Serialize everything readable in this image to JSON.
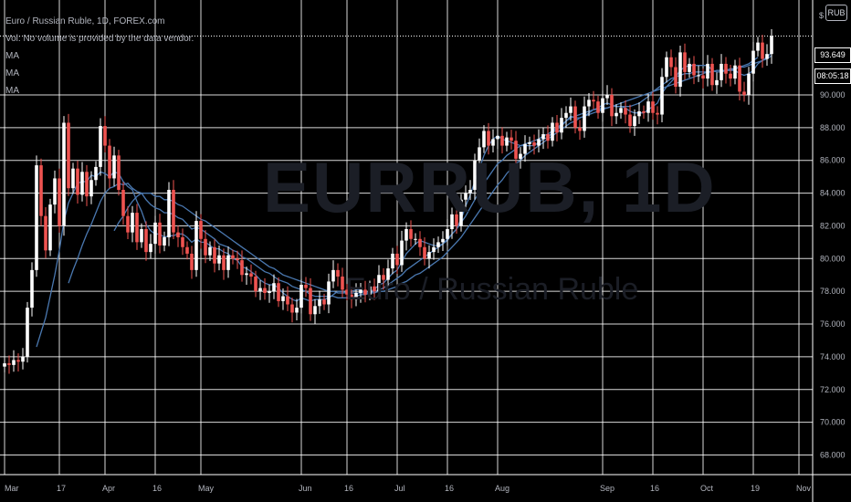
{
  "legend": {
    "title": "Euro / Russian Ruble, 1D, FOREX.com",
    "volume_note": "Vol: No volume is provided by the data vendor.",
    "ma_labels": [
      "MA",
      "MA",
      "MA"
    ]
  },
  "watermark": {
    "symbol": "EURRUB, 1D",
    "description": "Euro / Russian Ruble"
  },
  "unit_badge": "RUB",
  "scale_mark": "$",
  "last_price": "93.649",
  "countdown": "08:05:18",
  "colors": {
    "up": "#ffffff",
    "down": "#ef5350",
    "ma": "#4a78b0",
    "grid": "#ffffff",
    "background": "#000000"
  },
  "chart_data": {
    "type": "candlestick",
    "y_ticks": [
      "68.000",
      "70.000",
      "72.000",
      "74.000",
      "76.000",
      "78.000",
      "80.000",
      "82.000",
      "84.000",
      "86.000",
      "88.000",
      "90.000"
    ],
    "ylim": [
      66.8,
      95.8
    ],
    "x_ticks": [
      "Mar",
      "17",
      "Apr",
      "16",
      "May",
      "Jun",
      "16",
      "Jul",
      "16",
      "Aug",
      "Sep",
      "16",
      "Oct",
      "19",
      "Nov"
    ],
    "x_tick_bars": [
      0,
      12,
      22,
      33,
      43,
      65,
      75,
      86,
      97,
      108,
      131,
      142,
      153,
      164,
      174
    ],
    "close_series": [
      73.6,
      73.5,
      73.8,
      73.7,
      74.0,
      77.0,
      79.3,
      85.7,
      82.6,
      80.5,
      83.3,
      84.9,
      82.0,
      88.3,
      84.3,
      85.5,
      83.9,
      85.3,
      83.8,
      84.8,
      85.6,
      88.1,
      86.9,
      84.9,
      86.3,
      84.2,
      82.6,
      81.6,
      82.8,
      81.0,
      81.8,
      80.4,
      80.9,
      82.2,
      80.8,
      81.3,
      84.2,
      81.6,
      81.3,
      80.7,
      80.3,
      79.3,
      82.3,
      81.2,
      80.2,
      80.7,
      79.7,
      80.2,
      79.3,
      80.2,
      80.0,
      79.9,
      79.0,
      79.1,
      78.9,
      78.0,
      78.2,
      77.9,
      78.0,
      78.5,
      77.4,
      77.7,
      77.2,
      76.7,
      77.0,
      78.4,
      78.2,
      76.6,
      77.1,
      77.5,
      77.2,
      78.6,
      79.3,
      78.9,
      78.1,
      77.8,
      77.5,
      77.9,
      78.1,
      77.8,
      78.3,
      78.0,
      79.0,
      78.7,
      79.4,
      80.3,
      79.6,
      81.1,
      81.8,
      81.2,
      81.2,
      80.7,
      80.0,
      80.4,
      80.7,
      81.0,
      81.2,
      81.8,
      82.7,
      82.0,
      83.6,
      84.0,
      84.2,
      86.0,
      86.8,
      87.8,
      86.9,
      87.3,
      87.5,
      86.9,
      87.4,
      87.2,
      86.1,
      86.4,
      87.0,
      87.1,
      86.9,
      87.3,
      87.6,
      87.2,
      88.3,
      87.7,
      88.6,
      88.9,
      89.3,
      88.0,
      87.8,
      89.3,
      89.7,
      89.6,
      88.9,
      89.8,
      90.0,
      88.7,
      88.9,
      89.2,
      88.8,
      88.1,
      88.7,
      89.0,
      88.9,
      89.6,
      88.9,
      88.8,
      91.1,
      92.3,
      91.7,
      90.5,
      92.6,
      91.4,
      91.9,
      91.2,
      91.2,
      91.0,
      91.9,
      90.6,
      90.9,
      91.9,
      91.3,
      91.0,
      91.8,
      90.2,
      90.0,
      91.3,
      92.7,
      93.2,
      92.2,
      92.5,
      93.6
    ],
    "ma_series": [
      {
        "period": 8,
        "values": [
          null,
          null,
          null,
          null,
          null,
          null,
          null,
          74.6,
          75.5,
          76.4,
          77.7,
          79.0,
          80.5,
          82.3,
          83.4,
          84.0,
          84.6,
          84.7,
          84.7,
          85.1,
          85.0,
          85.3,
          85.2,
          85.0,
          85.3,
          85.2,
          84.7,
          84.4,
          84.2,
          83.5,
          82.9,
          82.1,
          81.7,
          81.5,
          81.5,
          81.3,
          81.4,
          81.4,
          81.5,
          81.5,
          81.3,
          81.0,
          81.2,
          81.0,
          81.0,
          80.8,
          80.6,
          80.6,
          80.4,
          80.3,
          80.0,
          79.9,
          79.5,
          79.4,
          79.2,
          79.0,
          78.7,
          78.5,
          78.4,
          78.4,
          78.2,
          77.9,
          77.7,
          77.5,
          77.4,
          77.6,
          77.5,
          77.4,
          77.5,
          77.5,
          77.5,
          77.6,
          77.8,
          78.0,
          78.0,
          77.9,
          78.0,
          78.1,
          78.1,
          77.9,
          78.0,
          78.1,
          78.4,
          78.5,
          78.8,
          79.1,
          79.3,
          79.8,
          80.3,
          80.6,
          80.9,
          81.1,
          81.0,
          80.9,
          80.8,
          80.8,
          80.9,
          81.1,
          81.5,
          81.8,
          82.4,
          83.2,
          83.9,
          84.7,
          85.5,
          86.3,
          86.9,
          87.3,
          87.5,
          87.3,
          87.2,
          87.1,
          87.0,
          86.9,
          86.9,
          86.9,
          86.9,
          87.1,
          87.3,
          87.4,
          87.7,
          87.9,
          88.1,
          88.4,
          88.7,
          88.6,
          88.6,
          88.7,
          88.9,
          89.1,
          89.2,
          89.4,
          89.5,
          89.4,
          89.3,
          89.3,
          89.2,
          89.0,
          88.9,
          88.9,
          88.9,
          89.1,
          89.3,
          89.5,
          90.1,
          90.5,
          90.8,
          91.1,
          91.5,
          91.7,
          91.8,
          91.8,
          91.8,
          91.8,
          91.8,
          91.5,
          91.4,
          91.4,
          91.5,
          91.5,
          91.5,
          91.3,
          91.2,
          91.3,
          91.5,
          91.9,
          92.1,
          92.3,
          92.6
        ]
      },
      {
        "period": 15,
        "values": [
          null,
          null,
          null,
          null,
          null,
          null,
          null,
          null,
          null,
          null,
          null,
          null,
          null,
          null,
          78.5,
          79.3,
          80.0,
          80.8,
          81.5,
          82.1,
          82.8,
          83.5,
          84.0,
          84.3,
          84.4,
          84.6,
          84.5,
          84.6,
          84.3,
          84.1,
          84.0,
          83.6,
          83.3,
          83.1,
          83.0,
          82.8,
          82.8,
          82.7,
          82.5,
          82.4,
          82.1,
          81.8,
          81.9,
          81.8,
          81.6,
          81.4,
          81.2,
          80.9,
          80.8,
          80.7,
          80.5,
          80.4,
          80.1,
          80.0,
          79.8,
          79.6,
          79.4,
          79.2,
          79.1,
          78.9,
          78.7,
          78.6,
          78.5,
          78.3,
          78.2,
          78.1,
          78.0,
          77.8,
          77.7,
          77.7,
          77.7,
          77.7,
          77.7,
          77.6,
          77.6,
          77.6,
          77.6,
          77.7,
          77.8,
          77.8,
          77.9,
          78.0,
          78.1,
          78.2,
          78.4,
          78.6,
          78.8,
          79.0,
          79.3,
          79.5,
          79.7,
          79.9,
          80.1,
          80.3,
          80.5,
          80.7,
          80.9,
          81.2,
          81.5,
          81.8,
          82.2,
          82.6,
          83.1,
          83.6,
          84.1,
          84.6,
          85.0,
          85.4,
          85.8,
          86.0,
          86.3,
          86.5,
          86.7,
          86.9,
          87.0,
          87.1,
          87.2,
          87.3,
          87.5,
          87.6,
          87.8,
          88.0,
          88.2,
          88.4,
          88.6,
          88.7,
          88.8,
          88.9,
          89.0,
          89.1,
          89.1,
          89.2,
          89.2,
          89.3,
          89.3,
          89.3,
          89.3,
          89.3,
          89.4,
          89.5,
          89.7,
          89.9,
          90.2,
          90.4,
          90.6,
          90.8,
          91.0,
          91.1,
          91.2,
          91.3,
          91.3,
          91.4,
          91.4,
          91.4,
          91.4,
          91.4,
          91.5,
          91.5,
          91.5,
          91.5,
          91.6,
          91.7,
          91.8,
          91.9,
          92.1,
          92.3
        ]
      },
      {
        "period": 25,
        "values": [
          null,
          null,
          null,
          null,
          null,
          null,
          null,
          null,
          null,
          null,
          null,
          null,
          null,
          null,
          null,
          null,
          null,
          null,
          null,
          null,
          null,
          null,
          null,
          null,
          81.7,
          82.2,
          82.6,
          83.1,
          83.5,
          83.8,
          84.0,
          84.0,
          84.0,
          83.8,
          83.8,
          83.6,
          83.6,
          83.5,
          83.3,
          83.2,
          83.0,
          82.8,
          82.6,
          82.4,
          82.3,
          82.1,
          81.9,
          81.7,
          81.5,
          81.3,
          81.1,
          80.9,
          80.7,
          80.5,
          80.3,
          80.1,
          79.9,
          79.7,
          79.5,
          79.4,
          79.2,
          79.0,
          78.9,
          78.8,
          78.7,
          78.6,
          78.5,
          78.4,
          78.3,
          78.2,
          78.1,
          78.0,
          78.0,
          77.9,
          77.9,
          77.9,
          77.9,
          77.9,
          77.9,
          77.9,
          77.9,
          77.9,
          78.0,
          78.0,
          78.1,
          78.2,
          78.3,
          78.5,
          78.6,
          78.8,
          79.0,
          79.1,
          79.3,
          79.5,
          79.7,
          79.9,
          80.1,
          80.4,
          80.7,
          81.0,
          81.3,
          81.7,
          82.1,
          82.5,
          82.9,
          83.3,
          83.7,
          84.1,
          84.5,
          84.8,
          85.2,
          85.5,
          85.8,
          86.0,
          86.3,
          86.5,
          86.7,
          86.9,
          87.1,
          87.3,
          87.5,
          87.7,
          87.9,
          88.1,
          88.3,
          88.4,
          88.6,
          88.7,
          88.8,
          88.9,
          89.0,
          89.1,
          89.2,
          89.3,
          89.4,
          89.5,
          89.6,
          89.7,
          89.8,
          89.9,
          90.0,
          90.1,
          90.2,
          90.3,
          90.4,
          90.5,
          90.6,
          90.7,
          90.8,
          90.9,
          91.0,
          91.1,
          91.2,
          91.3,
          91.4,
          91.4,
          91.5,
          91.5,
          91.5,
          91.6,
          91.6,
          91.7,
          91.7,
          91.8,
          91.9,
          92.0,
          92.1,
          92.2,
          92.4
        ]
      }
    ]
  }
}
